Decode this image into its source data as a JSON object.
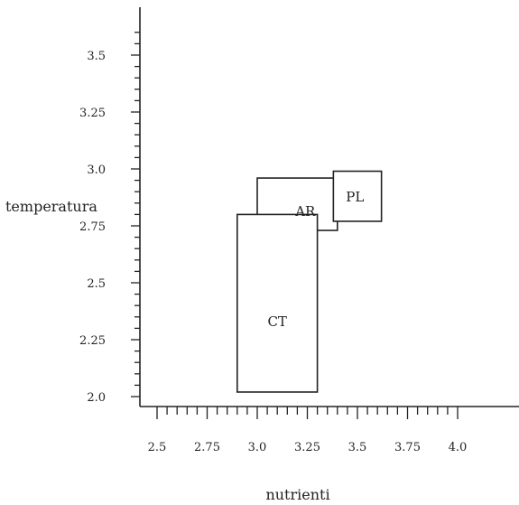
{
  "chart_data": {
    "type": "rectangles",
    "xlabel": "nutrienti",
    "ylabel": "temperatura",
    "xlim": [
      2.5,
      4.0
    ],
    "ylim": [
      2.0,
      3.5
    ],
    "x_ticks": [
      "2.5",
      "2.75",
      "3.0",
      "3.25",
      "3.5",
      "3.75",
      "4.0"
    ],
    "y_ticks": [
      "2.0",
      "2.25",
      "2.5",
      "2.75",
      "3.0",
      "3.25",
      "3.5"
    ],
    "x_tick_values": [
      2.5,
      2.75,
      3.0,
      3.25,
      3.5,
      3.75,
      4.0
    ],
    "y_tick_values": [
      2.0,
      2.25,
      2.5,
      2.75,
      3.0,
      3.25,
      3.5
    ],
    "regions": [
      {
        "label": "CT",
        "x": [
          2.9,
          3.3
        ],
        "y": [
          2.02,
          2.8
        ]
      },
      {
        "label": "AR",
        "x": [
          3.0,
          3.4
        ],
        "y": [
          2.73,
          2.96
        ]
      },
      {
        "label": "PL",
        "x": [
          3.38,
          3.62
        ],
        "y": [
          2.77,
          2.99
        ]
      }
    ]
  }
}
